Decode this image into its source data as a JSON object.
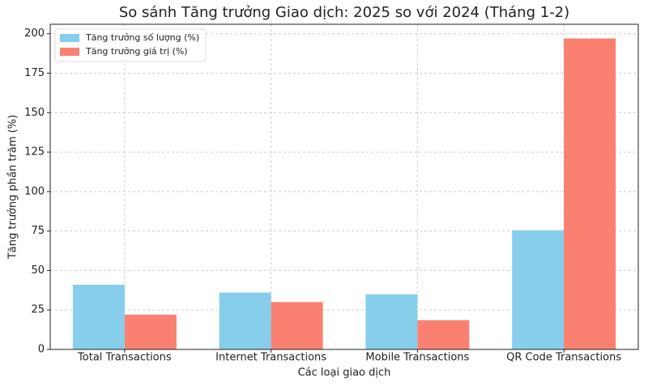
{
  "chart_data": {
    "type": "bar",
    "title": "So sánh Tăng trưởng Giao dịch: 2025 so với 2024 (Tháng 1-2)",
    "x_label": "Các loại giao dịch",
    "y_label": "Tăng trưởng phần trăm (%)",
    "categories": [
      "Total Transactions",
      "Internet Transactions",
      "Mobile Transactions",
      "QR Code Transactions"
    ],
    "series": [
      {
        "name": "Tăng trưởng số lượng (%)",
        "color": "#87ceeb",
        "values": [
          41,
          36,
          35,
          75.5
        ]
      },
      {
        "name": "Tăng trưởng giá trị (%)",
        "color": "#fa8072",
        "values": [
          22,
          30,
          18.5,
          197
        ]
      }
    ],
    "ylim": [
      0,
      206
    ],
    "yticks": [
      0,
      25,
      50,
      75,
      100,
      125,
      150,
      175,
      200
    ],
    "grid": true,
    "legend": "upper-left"
  }
}
